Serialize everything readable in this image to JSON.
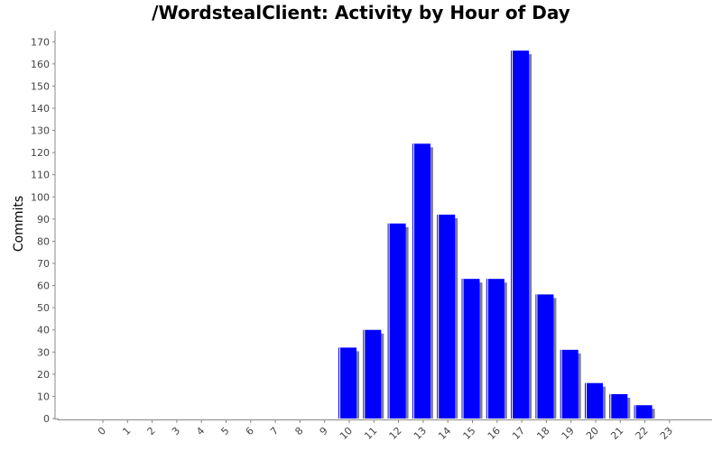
{
  "chart_data": {
    "type": "bar",
    "title": "/WordstealClient: Activity by Hour of Day",
    "xlabel": "",
    "ylabel": "Commits",
    "ylim": [
      0,
      175
    ],
    "yticks": [
      0,
      10,
      20,
      30,
      40,
      50,
      60,
      70,
      80,
      90,
      100,
      110,
      120,
      130,
      140,
      150,
      160,
      170
    ],
    "categories": [
      "0",
      "1",
      "2",
      "3",
      "4",
      "5",
      "6",
      "7",
      "8",
      "9",
      "10",
      "11",
      "12",
      "13",
      "14",
      "15",
      "16",
      "17",
      "18",
      "19",
      "20",
      "21",
      "22",
      "23"
    ],
    "values": [
      0,
      0,
      0,
      0,
      0,
      0,
      0,
      0,
      0,
      0,
      32,
      40,
      88,
      124,
      92,
      63,
      63,
      166,
      56,
      31,
      16,
      11,
      6,
      0
    ],
    "grid": false,
    "legend": "none",
    "bar_color": "#0000ff",
    "shadow_color": "#808080"
  }
}
